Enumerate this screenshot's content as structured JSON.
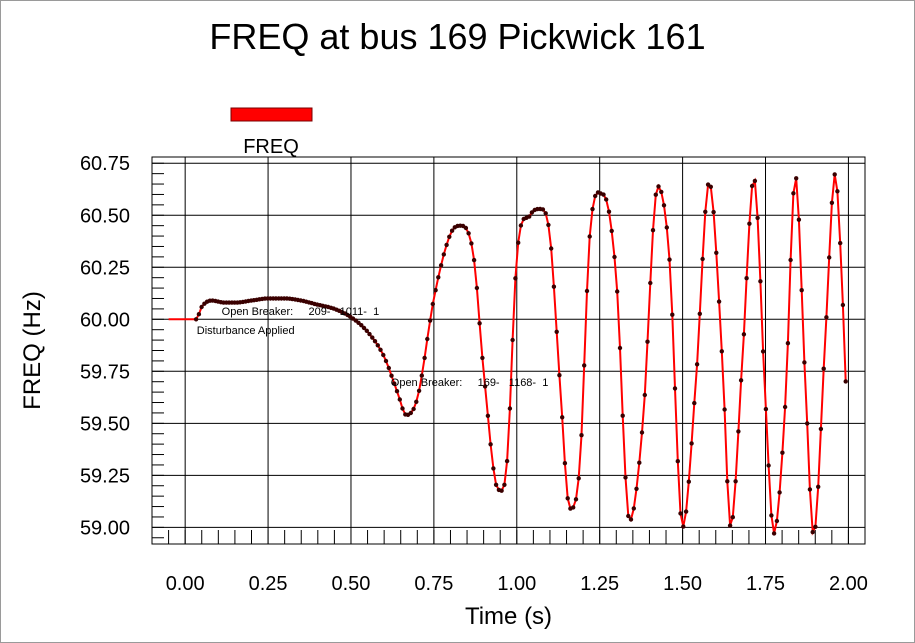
{
  "chart_data": {
    "type": "line",
    "title": "FREQ at bus 169 Pickwick 161",
    "xlabel": "Time (s)",
    "ylabel": "FREQ (Hz)",
    "xlim": [
      -0.1,
      2.05
    ],
    "ylim": [
      58.92,
      60.78
    ],
    "xticks": [
      0.0,
      0.25,
      0.5,
      0.75,
      1.0,
      1.25,
      1.5,
      1.75,
      2.0
    ],
    "xtick_labels": [
      "0.00",
      "0.25",
      "0.50",
      "0.75",
      "1.00",
      "1.25",
      "1.50",
      "1.75",
      "2.00"
    ],
    "yticks": [
      59.0,
      59.25,
      59.5,
      59.75,
      60.0,
      60.25,
      60.5,
      60.75
    ],
    "ytick_labels": [
      "59.00",
      "59.25",
      "59.50",
      "59.75",
      "60.00",
      "60.25",
      "60.50",
      "60.75"
    ],
    "grid": true,
    "legend": {
      "label": "FREQ",
      "color": "#ff0000",
      "placement": "top-left"
    },
    "series_color": "#ff0000",
    "marker_color": "#3a0000",
    "series": [
      {
        "name": "FREQ",
        "x": [
          -0.05,
          0.033,
          0.05,
          0.08,
          0.12,
          0.15,
          0.2,
          0.25,
          0.3,
          0.35,
          0.4,
          0.45,
          0.5,
          0.55,
          0.6,
          0.64,
          0.667,
          0.7,
          0.75,
          0.8,
          0.83,
          0.87,
          0.9,
          0.945,
          0.97,
          1.0,
          1.04,
          1.07,
          1.1,
          1.13,
          1.16,
          1.19,
          1.22,
          1.26,
          1.3,
          1.34,
          1.38,
          1.425,
          1.46,
          1.5,
          1.54,
          1.58,
          1.62,
          1.645,
          1.68,
          1.715,
          1.75,
          1.775,
          1.81,
          1.84,
          1.87,
          1.895,
          1.93,
          1.96,
          1.98,
          1.995
        ],
        "y": [
          60.0,
          60.0,
          60.06,
          60.09,
          60.08,
          60.08,
          60.09,
          60.1,
          60.1,
          60.09,
          60.07,
          60.05,
          60.01,
          59.94,
          59.82,
          59.65,
          59.54,
          59.62,
          60.1,
          60.41,
          60.45,
          60.3,
          59.75,
          59.18,
          59.3,
          60.3,
          60.5,
          60.53,
          60.4,
          59.7,
          59.09,
          59.3,
          60.4,
          60.6,
          60.2,
          59.03,
          59.5,
          60.64,
          60.3,
          59.0,
          59.7,
          60.66,
          59.8,
          59.0,
          59.8,
          60.68,
          59.6,
          58.97,
          59.6,
          60.69,
          59.7,
          58.96,
          59.9,
          60.7,
          60.2,
          59.56
        ]
      }
    ],
    "annotations": [
      {
        "text": "Open Breaker:     209-   1011-  1",
        "x": 0.11,
        "y": 60.02
      },
      {
        "text": "Disturbance Applied",
        "x": 0.035,
        "y": 59.93
      },
      {
        "text": "Open Breaker:     169-   1168-  1",
        "x": 0.62,
        "y": 59.68
      }
    ]
  }
}
